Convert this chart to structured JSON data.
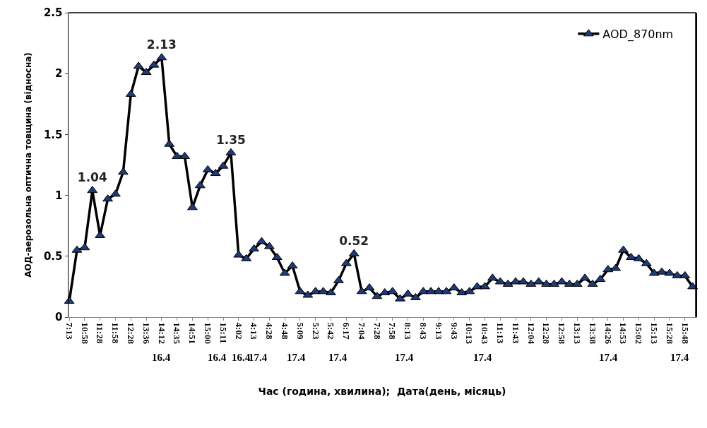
{
  "chart_data": {
    "type": "line",
    "xlabel": "Час (година, хвилина);  Дата(день, місяць)",
    "ylabel": "АОД-аерозольна оптична товщина (відносна)",
    "categories": [
      "7:13",
      null,
      "10:58",
      null,
      "11:28",
      null,
      "11:58",
      null,
      "12:28",
      null,
      "13:36",
      null,
      "14:12",
      null,
      "14:35",
      null,
      "14:51",
      null,
      "15:00",
      null,
      "15:11",
      null,
      "4:02",
      null,
      "4:13",
      null,
      "4:28",
      null,
      "4:48",
      null,
      "5:09",
      null,
      "5:23",
      null,
      "5:42",
      null,
      "6:17",
      null,
      "7:04",
      null,
      "7:28",
      null,
      "7:58",
      null,
      "8:13",
      null,
      "8:43",
      null,
      "9:13",
      null,
      "9:43",
      null,
      "10:13",
      null,
      "10:43",
      null,
      "11:13",
      null,
      "11:43",
      null,
      "12:04",
      null,
      "12:28",
      null,
      "12:58",
      null,
      "13:13",
      null,
      "13:38",
      null,
      "14:26",
      null,
      "14:53",
      null,
      "15:02",
      null,
      "15:13",
      null,
      "15:28",
      null,
      "15:48",
      null
    ],
    "series": [
      {
        "name": "AOD_870nm",
        "color": "#1f3a75",
        "values": [
          0.13,
          0.55,
          0.57,
          1.04,
          0.67,
          0.97,
          1.01,
          1.19,
          1.83,
          2.06,
          2.01,
          2.07,
          2.13,
          1.42,
          1.32,
          1.32,
          0.9,
          1.08,
          1.21,
          1.18,
          1.24,
          1.35,
          0.51,
          0.48,
          0.56,
          0.62,
          0.58,
          0.49,
          0.36,
          0.42,
          0.21,
          0.18,
          0.21,
          0.21,
          0.2,
          0.3,
          0.44,
          0.52,
          0.21,
          0.24,
          0.17,
          0.2,
          0.21,
          0.15,
          0.19,
          0.16,
          0.21,
          0.21,
          0.21,
          0.21,
          0.24,
          0.2,
          0.21,
          0.25,
          0.25,
          0.32,
          0.29,
          0.27,
          0.29,
          0.29,
          0.27,
          0.29,
          0.27,
          0.27,
          0.29,
          0.27,
          0.27,
          0.32,
          0.27,
          0.31,
          0.39,
          0.4,
          0.55,
          0.49,
          0.48,
          0.44,
          0.36,
          0.37,
          0.36,
          0.34,
          0.34,
          0.25
        ],
        "value_labels": [
          null,
          null,
          null,
          "1.04",
          null,
          null,
          null,
          null,
          null,
          null,
          null,
          null,
          "2.13",
          null,
          null,
          null,
          null,
          null,
          null,
          null,
          null,
          "1.35",
          null,
          null,
          null,
          null,
          null,
          null,
          null,
          null,
          null,
          null,
          null,
          null,
          null,
          null,
          null,
          "0.52",
          null,
          null,
          null,
          null,
          null,
          null,
          null,
          null,
          null,
          null,
          null,
          null,
          null,
          null,
          null,
          null,
          null,
          null,
          null,
          null,
          null,
          null,
          null,
          null,
          null,
          null,
          null,
          null,
          null,
          null,
          null,
          null,
          null,
          null,
          null,
          null,
          null,
          null,
          null,
          null,
          null,
          null,
          null,
          null
        ]
      }
    ],
    "annotations": [
      "16.4",
      "16.4",
      "16.4",
      "17.4",
      "17.4",
      "17.4",
      "17.4",
      "17.4",
      "17.4",
      "17.4"
    ],
    "ylim": [
      0,
      2.5
    ],
    "yticks": [
      0,
      0.5,
      1,
      1.5,
      2,
      2.5
    ],
    "marker": "triangle",
    "line_style": "solid",
    "legend": "top right",
    "grid": false
  }
}
